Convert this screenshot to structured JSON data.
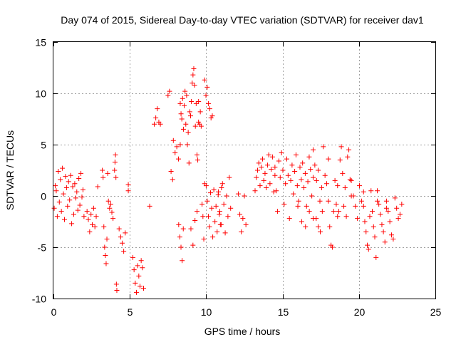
{
  "chart_data": {
    "type": "scatter",
    "title": "Day 074 of 2015, Sidereal Day-to-day VTEC variation (SDTVAR) for receiver dav1",
    "xlabel": "GPS time / hours",
    "ylabel": "SDTVAR / TECUs",
    "xlim": [
      0,
      25
    ],
    "ylim": [
      -10,
      15
    ],
    "x_ticks": [
      0,
      5,
      10,
      15,
      20,
      25
    ],
    "y_ticks": [
      -10,
      -5,
      0,
      5,
      10,
      15
    ],
    "x_tick_labels": [
      "0",
      "5",
      "10",
      "15",
      "20",
      "25"
    ],
    "y_tick_labels": [
      "-10",
      "-5",
      "0",
      "5",
      "10",
      "15"
    ],
    "grid": true,
    "marker": "+",
    "marker_color": "#ff0000",
    "series": [
      {
        "name": "SDTVAR",
        "segments": [
          {
            "x0": 0.05,
            "x1": 2.0,
            "y": [
              -1.2,
              1.0,
              0.5,
              -2.0,
              2.4,
              -0.6,
              1.6,
              -1.5,
              2.7,
              0.2,
              -2.3,
              1.9,
              0.8,
              -1.0,
              1.4,
              -0.4,
              2.0,
              -2.7,
              0.9,
              -1.8,
              1.2,
              -0.2,
              0.4,
              -1.4,
              1.7,
              -0.9,
              2.2,
              -0.1,
              0.6,
              -2.0
            ]
          },
          {
            "x0": 2.2,
            "x1": 2.8,
            "y": [
              -1.5,
              -2.3,
              -3.5,
              -1.8,
              -2.8,
              -1.2,
              -3.0,
              -2.0
            ]
          },
          {
            "x0": 2.9,
            "x1": 2.9,
            "y": [
              0.9
            ]
          },
          {
            "x0": 3.2,
            "x1": 3.55,
            "y": [
              2.5,
              1.8,
              -3.0,
              -5.0,
              -5.8,
              -6.6,
              -4.2,
              2.2
            ]
          },
          {
            "x0": 3.6,
            "x1": 3.9,
            "y": [
              -0.5,
              -1.2,
              -0.8,
              -1.6,
              -2.2
            ]
          },
          {
            "x0": 4.0,
            "x1": 4.15,
            "y": [
              2.5,
              3.3,
              4.0,
              1.8,
              -8.6,
              -9.2
            ]
          },
          {
            "x0": 4.3,
            "x1": 4.7,
            "y": [
              -3.2,
              -4.0,
              -4.6,
              -5.4,
              -3.6
            ]
          },
          {
            "x0": 4.9,
            "x1": 4.9,
            "y": [
              0.5,
              1.1
            ]
          },
          {
            "x0": 5.2,
            "x1": 5.9,
            "y": [
              -6.0,
              -7.2,
              -8.5,
              -9.4,
              -6.8,
              -7.8,
              -8.8,
              -6.3,
              -7.0,
              -9.0
            ]
          },
          {
            "x0": 6.3,
            "x1": 6.3,
            "y": [
              -1.0
            ]
          },
          {
            "x0": 6.6,
            "x1": 7.0,
            "y": [
              7.0,
              7.6,
              8.5,
              7.2,
              7.0
            ]
          },
          {
            "x0": 7.5,
            "x1": 7.8,
            "y": [
              9.8,
              10.2,
              2.4,
              1.6
            ]
          },
          {
            "x0": 7.85,
            "x1": 8.3,
            "y": [
              5.4,
              4.2,
              4.8,
              3.6,
              5.0
            ]
          },
          {
            "x0": 8.3,
            "x1": 9.5,
            "y": [
              9.0,
              8.0,
              7.5,
              9.5,
              6.5,
              8.8,
              10.2,
              7.0,
              9.8,
              5.0,
              6.2,
              3.2,
              8.2,
              7.8,
              9.2,
              11.0,
              11.8,
              12.4,
              10.8,
              6.8,
              9.0,
              4.0,
              3.5,
              7.2
            ]
          },
          {
            "x0": 8.2,
            "x1": 8.5,
            "y": [
              -2.8,
              -4.0,
              -5.0,
              -6.3,
              -3.2
            ]
          },
          {
            "x0": 9.5,
            "x1": 9.9,
            "y": [
              9.2,
              7.0,
              8.2,
              6.8,
              -0.8,
              -2.0,
              -4.2,
              1.2
            ]
          },
          {
            "x0": 9.9,
            "x1": 10.4,
            "y": [
              11.3,
              9.8,
              10.6,
              9.0,
              8.5,
              7.6,
              7.8
            ]
          },
          {
            "x0": 9.0,
            "x1": 9.4,
            "y": [
              -3.2,
              -4.8,
              -2.4,
              -1.5
            ]
          },
          {
            "x0": 10.0,
            "x1": 11.0,
            "y": [
              1.0,
              -0.5,
              -2.0,
              -3.0,
              0.3,
              -1.2,
              -4.0,
              0.6,
              -2.5,
              -1.0,
              -3.5,
              0.1,
              -1.8,
              -2.8,
              0.8
            ]
          },
          {
            "x0": 10.8,
            "x1": 11.6,
            "y": [
              0.4,
              -1.5,
              -2.8,
              1.2,
              -0.8,
              -3.6,
              0.0,
              -2.0,
              1.8,
              -1.2
            ]
          },
          {
            "x0": 12.1,
            "x1": 12.6,
            "y": [
              0.2,
              -1.8,
              -3.5,
              -2.2,
              0.0,
              -2.8
            ]
          },
          {
            "x0": 13.2,
            "x1": 14.5,
            "y": [
              0.5,
              1.8,
              2.5,
              3.2,
              1.0,
              2.8,
              3.6,
              1.5,
              2.2,
              0.8,
              3.0,
              4.0,
              1.2,
              2.6,
              3.8,
              0.4,
              2.0
            ]
          },
          {
            "x0": 14.5,
            "x1": 17.0,
            "y": [
              2.8,
              0.5,
              -1.5,
              3.4,
              1.8,
              4.2,
              2.5,
              -0.8,
              1.2,
              3.6,
              2.0,
              -2.2,
              1.5,
              3.0,
              0.2,
              2.4,
              4.0,
              1.0,
              -0.5,
              2.8,
              1.6,
              3.2,
              0.8,
              2.2,
              -1.0,
              1.4,
              3.8,
              2.6,
              0.0,
              1.8
            ]
          },
          {
            "x0": 16.0,
            "x1": 17.0,
            "y": [
              -1.0,
              -2.5,
              -3.0,
              -1.5,
              -2.2
            ]
          },
          {
            "x0": 17.0,
            "x1": 18.0,
            "y": [
              4.5,
              3.0,
              1.5,
              2.5,
              -0.5,
              0.8,
              4.8,
              2.0,
              1.2,
              3.6
            ]
          },
          {
            "x0": 17.2,
            "x1": 17.6,
            "y": [
              -2.2,
              -3.0,
              -3.5,
              -1.5
            ]
          },
          {
            "x0": 18.0,
            "x1": 18.6,
            "y": [
              -0.5,
              -3.0,
              -4.8,
              -5.0,
              -1.5,
              1.5,
              -0.8,
              -2.0
            ]
          },
          {
            "x0": 18.6,
            "x1": 19.5,
            "y": [
              1.0,
              -1.5,
              3.5,
              4.8,
              2.2,
              -1.0,
              0.8,
              -2.0,
              3.8,
              4.5,
              1.6,
              0.0
            ]
          },
          {
            "x0": 19.5,
            "x1": 20.3,
            "y": [
              1.5,
              0.0,
              -1.0,
              -2.2,
              1.0,
              -0.5,
              0.4
            ]
          },
          {
            "x0": 20.3,
            "x1": 21.2,
            "y": [
              -1.0,
              -2.5,
              -3.5,
              -4.8,
              -5.2,
              -2.0,
              0.5,
              -1.5,
              -3.0,
              -4.0,
              -6.0,
              -0.5
            ]
          },
          {
            "x0": 21.2,
            "x1": 21.8,
            "y": [
              0.5,
              -0.8,
              -1.8,
              -2.8,
              -3.5,
              -4.5,
              -1.2
            ]
          },
          {
            "x0": 21.8,
            "x1": 22.8,
            "y": [
              -0.5,
              -1.5,
              -2.5,
              -3.8,
              -4.2,
              -0.2,
              -1.2,
              -2.2,
              -1.8,
              -0.8
            ]
          }
        ]
      }
    ]
  }
}
